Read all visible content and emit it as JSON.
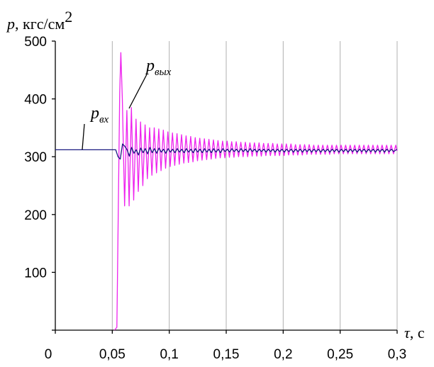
{
  "chart_data": {
    "type": "line",
    "ylabel": {
      "symbol": "p",
      "unit": ", кгс/см",
      "unit_exp": "2"
    },
    "xlabel": {
      "symbol": "τ",
      "unit": ", с"
    },
    "xlim": [
      0,
      0.3
    ],
    "ylim": [
      0,
      500
    ],
    "x_ticks": [
      {
        "value": 0,
        "label": "0"
      },
      {
        "value": 0.05,
        "label": "0,05"
      },
      {
        "value": 0.1,
        "label": "0,1"
      },
      {
        "value": 0.15,
        "label": "0,15"
      },
      {
        "value": 0.2,
        "label": "0,2"
      },
      {
        "value": 0.25,
        "label": "0,25"
      },
      {
        "value": 0.3,
        "label": "0,3"
      }
    ],
    "y_ticks": [
      {
        "value": 100,
        "label": "100"
      },
      {
        "value": 200,
        "label": "200"
      },
      {
        "value": 300,
        "label": "300"
      },
      {
        "value": 400,
        "label": "400"
      },
      {
        "value": 500,
        "label": "500"
      }
    ],
    "grid": {
      "vertical": true,
      "horizontal": false
    },
    "series": [
      {
        "id": "p_vyh",
        "label_main": "p",
        "label_sub": "вых",
        "color": "#ee22ee",
        "x": [
          0,
          0.05,
          0.052,
          0.054,
          0.0565,
          0.0575,
          0.0588,
          0.0608,
          0.0628,
          0.0648,
          0.0668,
          0.0688,
          0.0708,
          0.0728,
          0.0748,
          0.0768,
          0.0788,
          0.0808,
          0.0828,
          0.0848,
          0.0868,
          0.0888,
          0.0908,
          0.0928,
          0.0948,
          0.0968,
          0.0988,
          0.1008,
          0.1028,
          0.1048,
          0.1068,
          0.1088,
          0.1108,
          0.1128,
          0.1148,
          0.1168,
          0.1188,
          0.1208,
          0.1228,
          0.1248,
          0.1268,
          0.1288,
          0.1308,
          0.1328,
          0.1348,
          0.1368,
          0.1388,
          0.1408,
          0.1428,
          0.1448,
          0.1468,
          0.1488,
          0.1508,
          0.1528,
          0.1548,
          0.1568,
          0.1588,
          0.1608,
          0.1628,
          0.1648,
          0.1668,
          0.1688,
          0.1708,
          0.1728,
          0.1748,
          0.1768,
          0.1788,
          0.1808,
          0.1828,
          0.1848,
          0.1868,
          0.1888,
          0.1908,
          0.1928,
          0.1948,
          0.1968,
          0.1988,
          0.2008,
          0.2028,
          0.2048,
          0.2068,
          0.2088,
          0.2108,
          0.2128,
          0.2148,
          0.2168,
          0.2188,
          0.2208,
          0.2228,
          0.2248,
          0.2268,
          0.2288,
          0.2308,
          0.2328,
          0.2348,
          0.2368,
          0.2388,
          0.2408,
          0.2428,
          0.2448,
          0.2468,
          0.2488,
          0.2508,
          0.2528,
          0.2548,
          0.2568,
          0.2588,
          0.2608,
          0.2628,
          0.2648,
          0.2668,
          0.2688,
          0.2708,
          0.2728,
          0.2748,
          0.2768,
          0.2788,
          0.2808,
          0.2828,
          0.2848,
          0.2868,
          0.2888,
          0.2908,
          0.2928,
          0.2948,
          0.2968,
          0.2988,
          0.3
        ],
        "y": [
          null,
          null,
          0,
          5,
          410,
          480,
          400,
          215,
          380,
          215,
          385,
          225,
          365,
          240,
          360,
          250,
          355,
          262,
          350,
          268,
          350,
          272,
          348,
          276,
          346,
          280,
          343,
          283,
          341,
          285,
          340,
          287,
          338,
          289,
          336,
          290,
          335,
          291,
          333,
          293,
          332,
          294,
          331,
          295,
          330,
          296,
          329,
          297,
          328,
          298,
          327,
          298,
          327,
          299,
          326,
          299,
          326,
          300,
          325,
          300,
          325,
          300,
          324,
          301,
          324,
          301,
          324,
          301,
          323,
          302,
          323,
          302,
          323,
          302,
          322,
          302,
          322,
          302,
          322,
          303,
          322,
          303,
          321,
          303,
          321,
          303,
          321,
          304,
          321,
          304,
          320,
          304,
          320,
          304,
          320,
          304,
          320,
          304,
          320,
          305,
          320,
          305,
          320,
          305,
          320,
          305,
          320,
          305,
          320,
          305,
          320,
          305,
          320,
          305,
          320,
          305,
          320,
          305,
          320,
          305,
          320,
          305,
          320,
          305,
          320,
          305,
          320,
          310
        ]
      },
      {
        "id": "p_vh",
        "label_main": "p",
        "label_sub": "вх",
        "color": "#1a1a80",
        "x": [
          0,
          0.053,
          0.055,
          0.057,
          0.059,
          0.061,
          0.063,
          0.065,
          0.067,
          0.069,
          0.071,
          0.073,
          0.075,
          0.077,
          0.079,
          0.081,
          0.083,
          0.085,
          0.087,
          0.089,
          0.091,
          0.093,
          0.095,
          0.097,
          0.099,
          0.101,
          0.103,
          0.105,
          0.107,
          0.109,
          0.111,
          0.113,
          0.115,
          0.117,
          0.119,
          0.121,
          0.123,
          0.125,
          0.127,
          0.129,
          0.131,
          0.133,
          0.135,
          0.137,
          0.139,
          0.141,
          0.143,
          0.145,
          0.147,
          0.149,
          0.151,
          0.153,
          0.155,
          0.157,
          0.159,
          0.161,
          0.163,
          0.165,
          0.167,
          0.169,
          0.171,
          0.173,
          0.175,
          0.177,
          0.179,
          0.181,
          0.183,
          0.185,
          0.187,
          0.189,
          0.191,
          0.193,
          0.195,
          0.197,
          0.199,
          0.201,
          0.203,
          0.205,
          0.207,
          0.209,
          0.211,
          0.213,
          0.215,
          0.217,
          0.219,
          0.221,
          0.223,
          0.225,
          0.227,
          0.229,
          0.231,
          0.233,
          0.235,
          0.237,
          0.239,
          0.241,
          0.243,
          0.245,
          0.247,
          0.249,
          0.251,
          0.253,
          0.255,
          0.257,
          0.259,
          0.261,
          0.263,
          0.265,
          0.267,
          0.269,
          0.271,
          0.273,
          0.275,
          0.277,
          0.279,
          0.281,
          0.283,
          0.285,
          0.287,
          0.289,
          0.291,
          0.293,
          0.295,
          0.297,
          0.3
        ],
        "y": [
          312,
          312,
          300,
          296,
          322,
          318,
          312,
          301,
          316,
          306,
          312,
          303,
          315,
          307,
          314,
          305,
          316,
          307,
          314,
          306,
          315,
          308,
          313,
          306,
          314,
          308,
          313,
          307,
          314,
          308,
          313,
          307,
          314,
          308,
          313,
          307,
          314,
          308,
          313,
          307,
          314,
          308,
          313,
          307,
          314,
          308,
          313,
          307,
          314,
          309,
          313,
          308,
          314,
          309,
          313,
          308,
          314,
          309,
          313,
          308,
          314,
          309,
          313,
          308,
          313,
          309,
          313,
          308,
          313,
          309,
          313,
          308,
          313,
          309,
          313,
          308,
          313,
          309,
          313,
          308,
          313,
          309,
          313,
          308,
          313,
          309,
          313,
          308,
          313,
          309,
          313,
          308,
          313,
          309,
          313,
          308,
          313,
          309,
          313,
          308,
          313,
          309,
          313,
          308,
          313,
          309,
          313,
          308,
          313,
          309,
          313,
          308,
          313,
          309,
          313,
          308,
          313,
          309,
          313,
          308,
          313,
          309,
          313,
          309,
          313
        ]
      }
    ]
  }
}
